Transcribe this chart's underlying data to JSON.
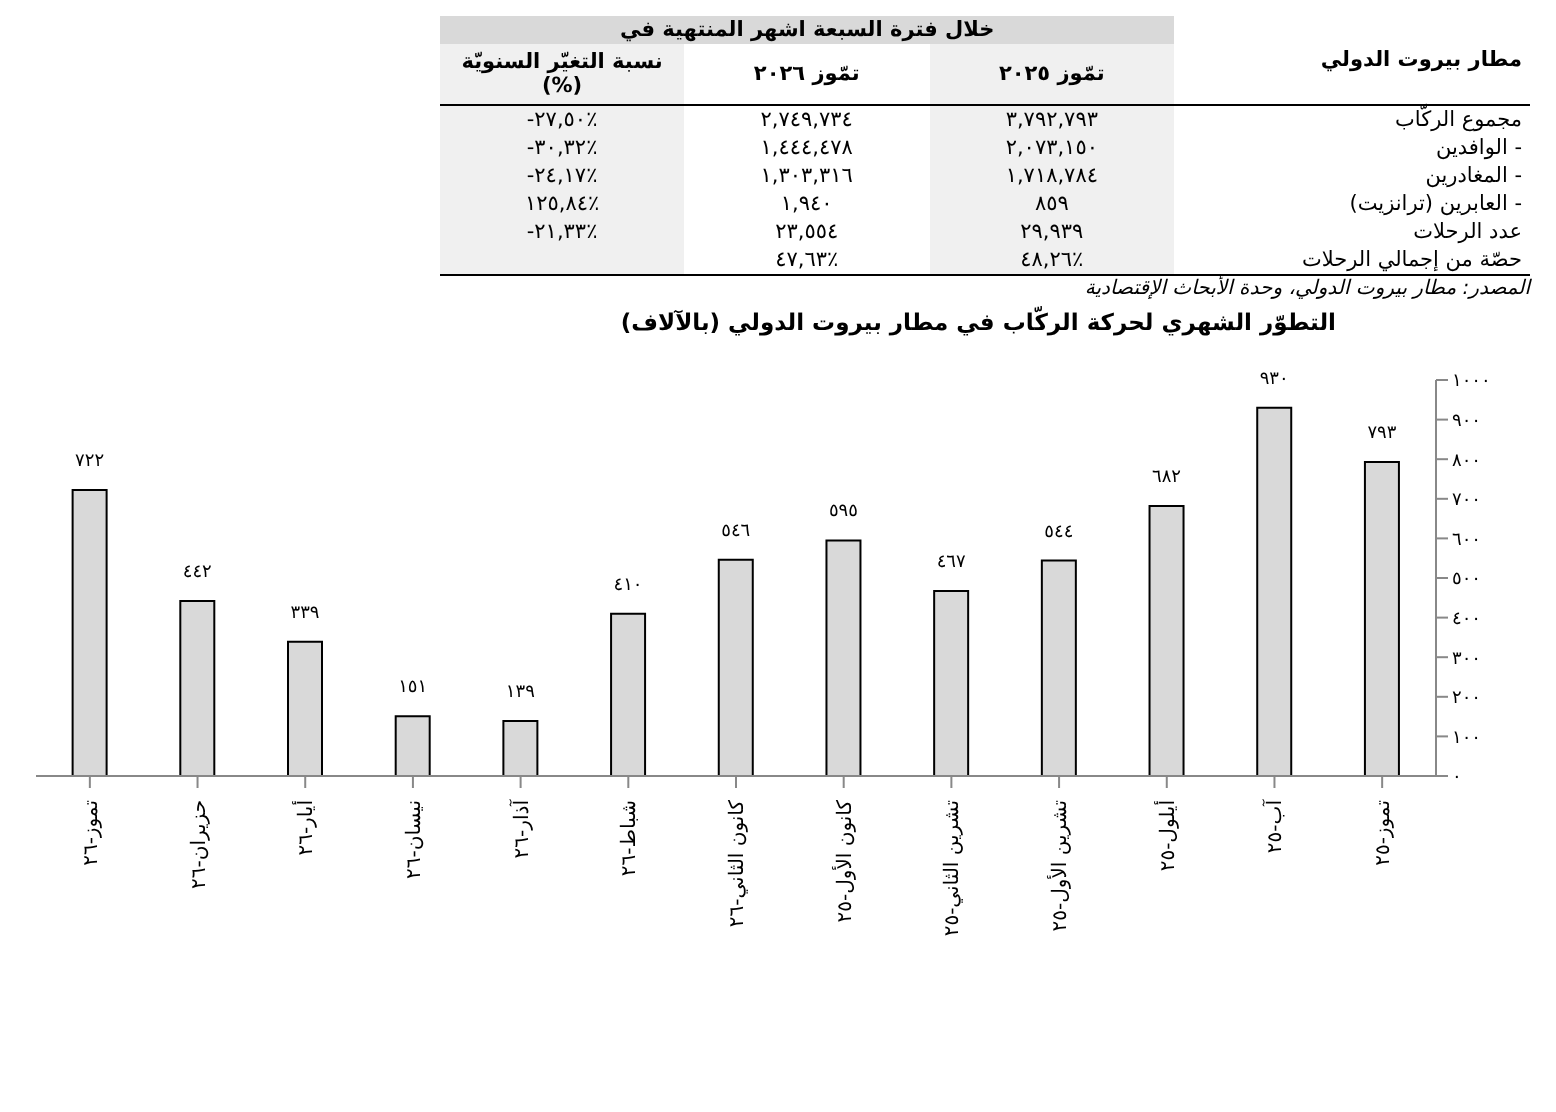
{
  "chart_data": [
    {
      "type": "other",
      "title": "خلال فترة السبعة اشهر المنتهية في",
      "ylabel": "مطار بيروت الدولي",
      "categories": [
        "تمّوز ٢٠٢٥",
        "تمّوز ٢٠٢٦",
        "نسبة التغيّر السنويّة (%)"
      ],
      "y_categories": [
        "مجموع الركّاب",
        "- الوافدين",
        "- المغادرين",
        "- العابرين (ترانزيت)",
        "عدد الرحلات",
        "حصّة من إجمالي الرحلات"
      ],
      "cell_labels": [
        [
          "٣,٧٩٢,٧٩٣",
          "٢,٧٤٩,٧٣٤",
          "-٢٧,٥٠٪"
        ],
        [
          "٢,٠٧٣,١٥٠",
          "١,٤٤٤,٤٧٨",
          "-٣٠,٣٢٪"
        ],
        [
          "١,٧١٨,٧٨٤",
          "١,٣٠٣,٣١٦",
          "-٢٤,١٧٪"
        ],
        [
          "٨٥٩",
          "١,٩٤٠",
          "١٢٥,٨٤٪"
        ],
        [
          "٢٩,٩٣٩",
          "٢٣,٥٥٤",
          "-٢١,٣٣٪"
        ],
        [
          "٤٨,٢٦٪",
          "٤٧,٦٣٪",
          null
        ]
      ],
      "annotations": [
        "المصدر: مطار بيروت الدولي، وحدة الأبحاث الإقتصادية"
      ]
    },
    {
      "type": "bar",
      "title": "التطوّر الشهري لحركة الركّاب في مطار بيروت الدولي (بالآلاف)",
      "categories": [
        "تموز-٢٦",
        "حزيران-٢٦",
        "أيار-٢٦",
        "نيسان-٢٦",
        "آذار-٢٦",
        "شباط-٢٦",
        "كانون الثاني-٢٦",
        "كانون الأول-٢٥",
        "تشرين الثاني-٢٥",
        "تشرين الأول-٢٥",
        "أيلول-٢٥",
        "آب-٢٥",
        "تموز-٢٥"
      ],
      "values": [
        722,
        442,
        339,
        151,
        139,
        410,
        546,
        595,
        467,
        544,
        682,
        930,
        793
      ],
      "value_labels": [
        "٧٢٢",
        "٤٤٢",
        "٣٣٩",
        "١٥١",
        "١٣٩",
        "٤١٠",
        "٥٤٦",
        "٥٩٥",
        "٤٦٧",
        "٥٤٤",
        "٦٨٢",
        "٩٣٠",
        "٧٩٣"
      ],
      "color": "#d9d9d9",
      "ylim": [
        0,
        1000
      ],
      "yticks": [
        {
          "value": 0,
          "label": "٠"
        },
        {
          "value": 100,
          "label": "١٠٠"
        },
        {
          "value": 200,
          "label": "٢٠٠"
        },
        {
          "value": 300,
          "label": "٣٠٠"
        },
        {
          "value": 400,
          "label": "٤٠٠"
        },
        {
          "value": 500,
          "label": "٥٠٠"
        },
        {
          "value": 600,
          "label": "٦٠٠"
        },
        {
          "value": 700,
          "label": "٧٠٠"
        },
        {
          "value": 800,
          "label": "٨٠٠"
        },
        {
          "value": 900,
          "label": "٩٠٠"
        },
        {
          "value": 1000,
          "label": "١٠٠٠"
        }
      ],
      "grid": false,
      "legend": false
    }
  ]
}
